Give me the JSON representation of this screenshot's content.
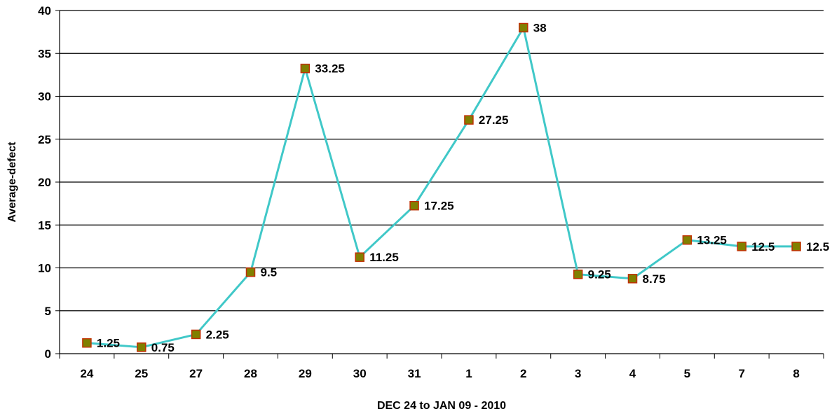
{
  "chart_data": {
    "type": "line",
    "title": "",
    "xlabel": "DEC 24 to JAN 09 - 2010",
    "ylabel": "Average-defect",
    "categories": [
      "24",
      "25",
      "27",
      "28",
      "29",
      "30",
      "31",
      "1",
      "2",
      "3",
      "4",
      "5",
      "7",
      "8"
    ],
    "series": [
      {
        "values": [
          1.25,
          0.75,
          2.25,
          9.5,
          33.25,
          11.25,
          17.25,
          27.25,
          38,
          9.25,
          8.75,
          13.25,
          12.5,
          12.5
        ],
        "data_labels": [
          "1.25",
          "0.75",
          "2.25",
          "9.5",
          "33.25",
          "11.25",
          "17.25",
          "27.25",
          "38",
          "9.25",
          "8.75",
          "13.25",
          "12.5",
          "12.5"
        ]
      }
    ],
    "ylim": [
      0,
      40
    ],
    "yticks": [
      0,
      5,
      10,
      15,
      20,
      25,
      30,
      35,
      40
    ],
    "grid": true,
    "legend": "none",
    "colors": {
      "line": "#40C8C8",
      "marker_fill": "#808000",
      "marker_edge": "#C03000",
      "grid": "#000000"
    }
  }
}
